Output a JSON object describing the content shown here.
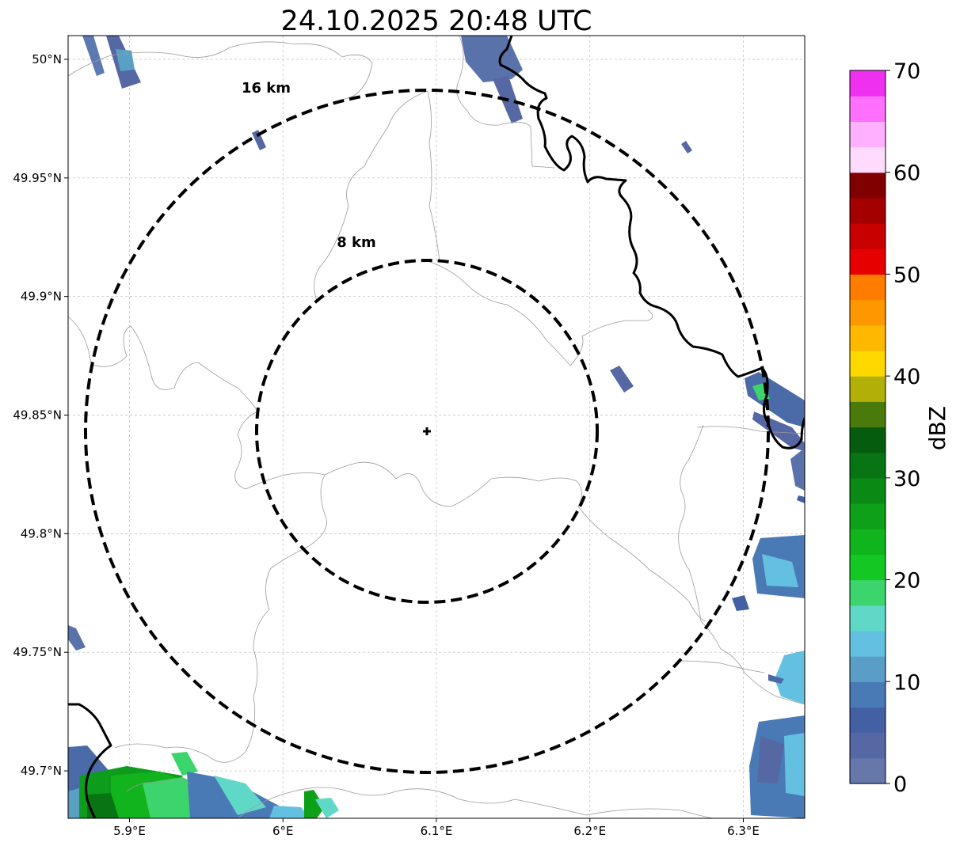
{
  "title": "24.10.2025 20:48 UTC",
  "map": {
    "lon_range": [
      5.86,
      6.34
    ],
    "lat_range": [
      49.68,
      50.01
    ],
    "x_ticks": [
      {
        "value": 5.9,
        "label": "5.9°E"
      },
      {
        "value": 6.0,
        "label": "6°E"
      },
      {
        "value": 6.1,
        "label": "6.1°E"
      },
      {
        "value": 6.2,
        "label": "6.2°E"
      },
      {
        "value": 6.3,
        "label": "6.3°E"
      }
    ],
    "y_ticks": [
      {
        "value": 50.0,
        "label": "50°N"
      },
      {
        "value": 49.95,
        "label": "49.95°N"
      },
      {
        "value": 49.9,
        "label": "49.9°N"
      },
      {
        "value": 49.85,
        "label": "49.85°N"
      },
      {
        "value": 49.8,
        "label": "49.8°N"
      },
      {
        "value": 49.75,
        "label": "49.75°N"
      },
      {
        "value": 49.7,
        "label": "49.7°N"
      }
    ],
    "grid": true,
    "radar_center": {
      "lon": 6.094,
      "lat": 49.843
    },
    "rings": [
      {
        "km": 8,
        "label": "8 km"
      },
      {
        "km": 16,
        "label": "16 km"
      }
    ]
  },
  "colorbar": {
    "label": "dBZ",
    "min": 0,
    "max": 70,
    "tick_labels": [
      "0",
      "10",
      "20",
      "30",
      "40",
      "50",
      "60",
      "70"
    ],
    "colors": [
      "#6677aa",
      "#5568a4",
      "#4460a4",
      "#4a7ab6",
      "#5a9ec8",
      "#64c0e0",
      "#60d8c8",
      "#3cd46c",
      "#14c824",
      "#10b41c",
      "#0ea018",
      "#0a8a14",
      "#087414",
      "#065c0e",
      "#4a7a0c",
      "#b0b008",
      "#ffd800",
      "#ffb800",
      "#ff9800",
      "#ff7c00",
      "#e60000",
      "#c80000",
      "#a40000",
      "#800000",
      "#ffdcff",
      "#ffb0ff",
      "#ff70ff",
      "#f030f0"
    ]
  }
}
